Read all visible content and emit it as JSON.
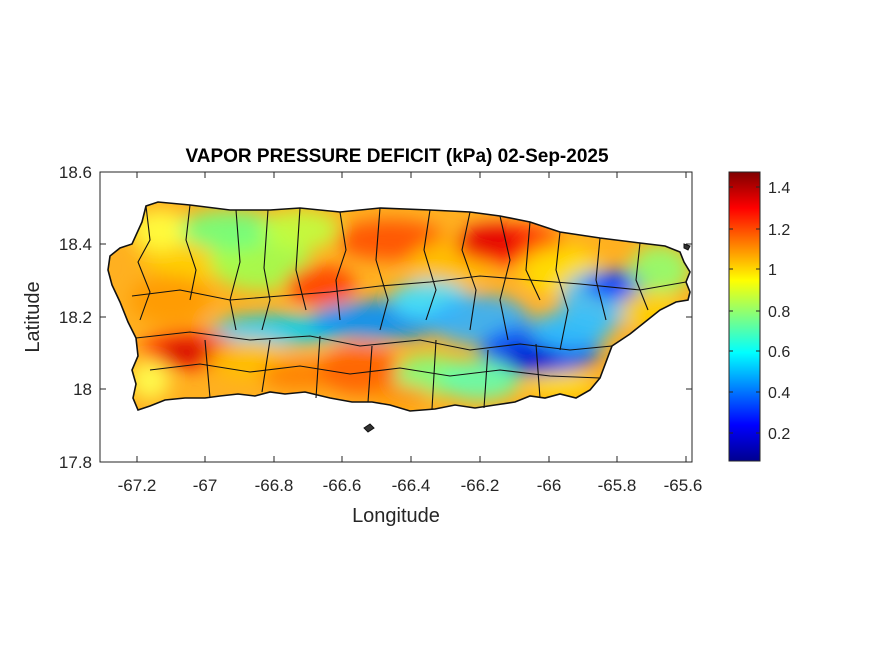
{
  "map": {
    "title": "VAPOR PRESSURE DEFICIT (kPa) 02-Sep-2025",
    "xlabel": "Longitude",
    "ylabel": "Latitude",
    "x_ticks": [
      "-67.2",
      "-67",
      "-66.8",
      "-66.6",
      "-66.4",
      "-66.2",
      "-66",
      "-65.8",
      "-65.6"
    ],
    "y_ticks": [
      "18.6",
      "18.4",
      "18.2",
      "18"
    ],
    "y_tick_bottom": "17.8",
    "xlim": [
      -67.3,
      -65.58
    ],
    "ylim": [
      17.8,
      18.6
    ],
    "colorbar": {
      "colormap": "jet",
      "range": [
        0.05,
        1.5
      ],
      "ticks": [
        "1.4",
        "1.2",
        "1",
        "0.8",
        "0.6",
        "0.4",
        "0.2"
      ]
    },
    "field_regions": [
      {
        "area": "north central coast",
        "level": "high",
        "value": 1.3
      },
      {
        "area": "west and southwest",
        "level": "high",
        "value": 1.2
      },
      {
        "area": "central mountains",
        "level": "low",
        "value": 0.4
      },
      {
        "area": "east near -65.8",
        "level": "very low",
        "value": 0.1
      }
    ]
  }
}
